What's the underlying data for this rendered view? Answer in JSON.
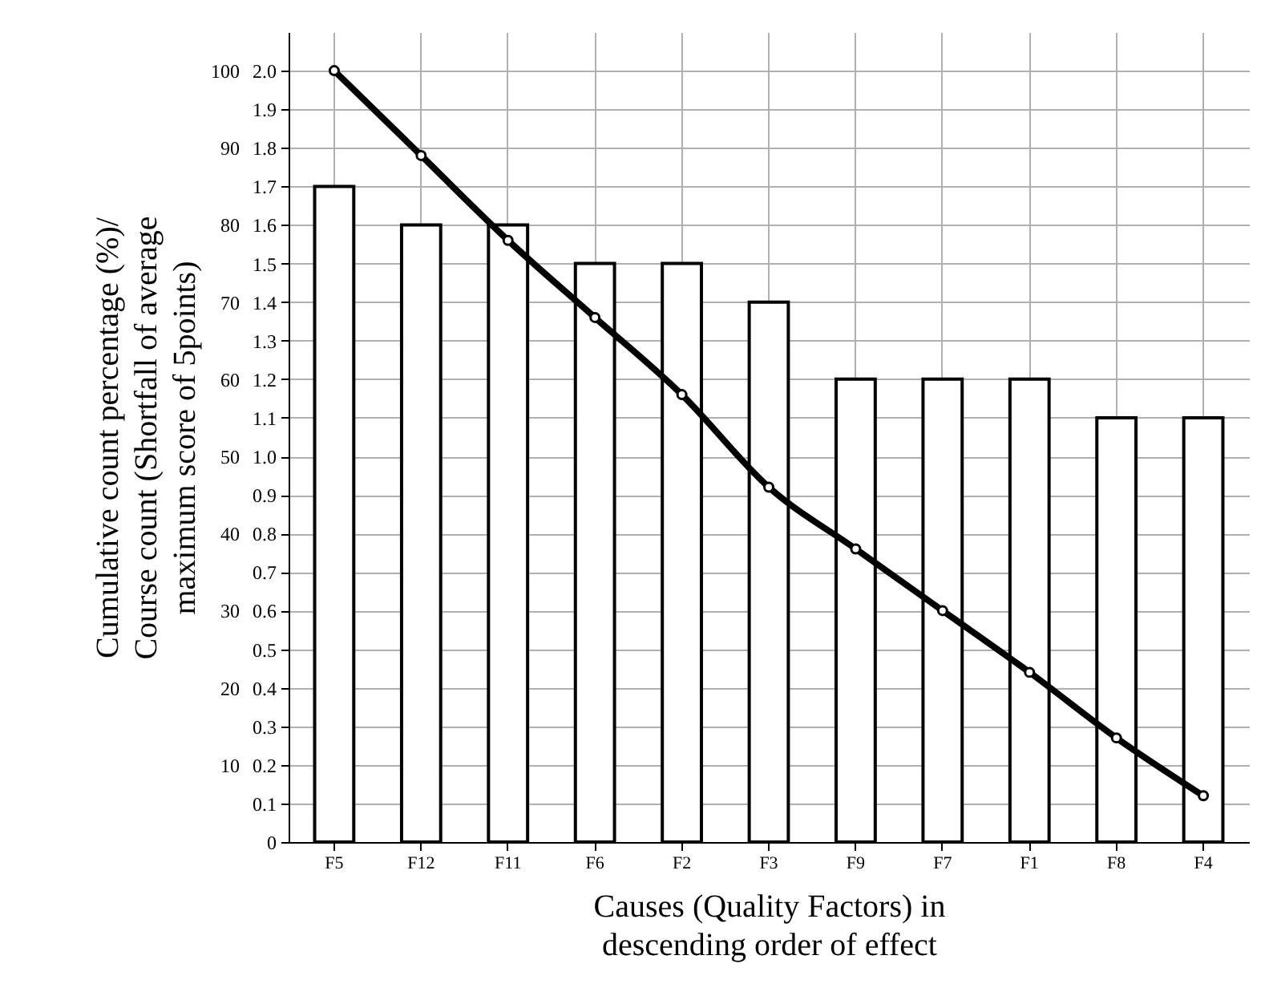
{
  "chart_data": {
    "type": "bar",
    "xlabel": "Causes (Quality Factors) in\ndescending order of effect",
    "ylabel": "Cumulative count percentage (%)/\nCourse count (Shortfall of average\nmaximum score of 5points)",
    "categories": [
      "F5",
      "F12",
      "F11",
      "F6",
      "F2",
      "F3",
      "F9",
      "F7",
      "F1",
      "F8",
      "F4"
    ],
    "series": [
      {
        "axis": "y2",
        "color": "#ffffff",
        "values": [
          1.7,
          1.6,
          1.6,
          1.5,
          1.5,
          1.4,
          1.2,
          1.2,
          1.2,
          1.1,
          1.1
        ]
      },
      {
        "type": "line",
        "color": "#000000",
        "marker": "circle",
        "values": [
          100,
          89,
          78,
          68,
          58,
          46,
          38,
          30,
          22,
          13.5,
          6
        ]
      }
    ],
    "ylim": [
      0,
      105
    ],
    "yticks": [
      10,
      20,
      30,
      40,
      50,
      60,
      70,
      80,
      90,
      100
    ],
    "y2lim": [
      0,
      2.1
    ],
    "y2ticks": [
      0,
      0.1,
      0.2,
      0.3,
      0.4,
      0.5,
      0.6,
      0.7,
      0.8,
      0.9,
      {
        "value": 1,
        "label": "1.0"
      },
      1.1,
      1.2,
      1.3,
      1.4,
      1.5,
      1.6,
      1.7,
      1.8,
      1.9,
      {
        "value": 2,
        "label": "2.0"
      }
    ],
    "grid": true
  }
}
